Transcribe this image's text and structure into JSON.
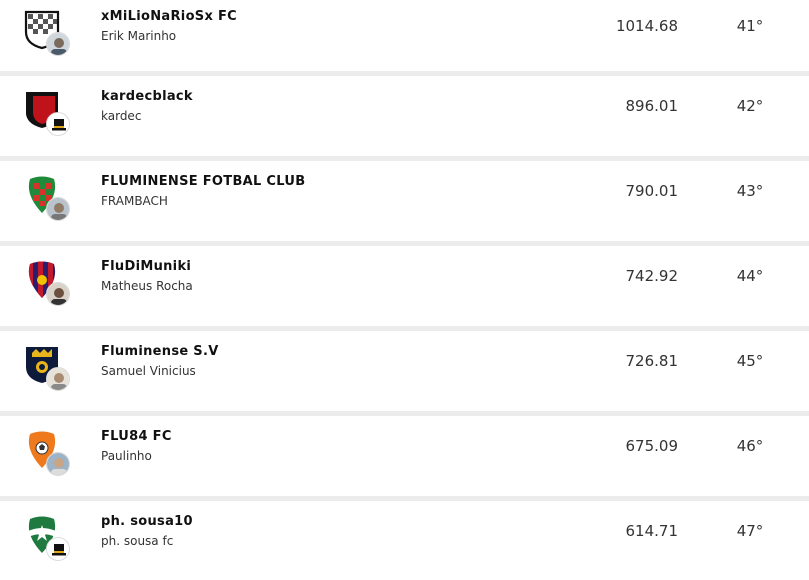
{
  "rows": [
    {
      "team": "xMiLioNaRioSx FC",
      "owner": "Erik Marinho",
      "points": "1014.68",
      "position": "41°",
      "crest": "checkered-shield-icon",
      "avatar": "user-photo-avatar"
    },
    {
      "team": "kardecblack",
      "owner": "kardec",
      "points": "896.01",
      "position": "42°",
      "crest": "black-red-shield-icon",
      "avatar": "top-hat-avatar"
    },
    {
      "team": "FLUMINENSE FOTBAL CLUB",
      "owner": "FRAMBACH",
      "points": "790.01",
      "position": "43°",
      "crest": "green-red-mosaic-shield-icon",
      "avatar": "user-photo-avatar"
    },
    {
      "team": "FluDiMuniki",
      "owner": "Matheus Rocha",
      "points": "742.92",
      "position": "44°",
      "crest": "striped-shield-icon",
      "avatar": "user-photo-avatar"
    },
    {
      "team": "Fluminense S.V",
      "owner": "Samuel Vinicius",
      "points": "726.81",
      "position": "45°",
      "crest": "navy-gold-shield-icon",
      "avatar": "user-photo-avatar"
    },
    {
      "team": "FLU84 FC",
      "owner": "Paulinho",
      "points": "675.09",
      "position": "46°",
      "crest": "orange-ball-shield-icon",
      "avatar": "user-photo-avatar"
    },
    {
      "team": "ph. sousa10",
      "owner": "ph. sousa fc",
      "points": "614.71",
      "position": "47°",
      "crest": "green-star-shield-icon",
      "avatar": "top-hat-avatar"
    }
  ]
}
